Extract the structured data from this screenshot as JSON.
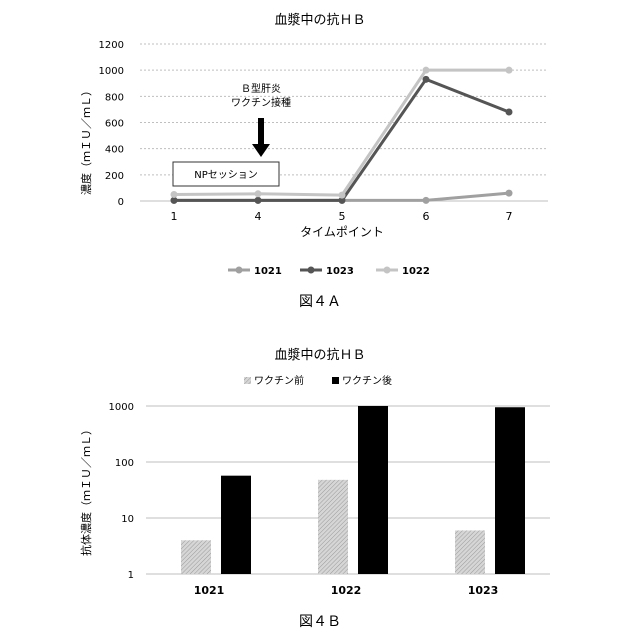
{
  "figure_a": {
    "caption": "図４Ａ",
    "annotation_vaccine": [
      "Ｂ型肝炎",
      "ワクチン接種"
    ],
    "annotation_box": "NPセッション"
  },
  "figure_b": {
    "caption": "図４Ｂ"
  },
  "colors": {
    "s1021": "#a0a0a0",
    "s1023": "#555555",
    "s1022": "#c4c4c4",
    "pre": "#bdbdbd",
    "post": "#000000",
    "grid": "#bfbfbf"
  },
  "chart_data": [
    {
      "type": "line",
      "title": "血漿中の抗ＨＢ",
      "xlabel": "タイムポイント",
      "ylabel": "濃度（ｍＩＵ／ｍＬ）",
      "categories": [
        "1",
        "4",
        "5",
        "6",
        "7"
      ],
      "ylim": [
        0,
        1200
      ],
      "yticks": [
        0,
        200,
        400,
        600,
        800,
        1000,
        1200
      ],
      "grid": true,
      "legend_position": "bottom",
      "series": [
        {
          "name": "1021",
          "values": [
            5,
            5,
            5,
            5,
            60
          ]
        },
        {
          "name": "1023",
          "values": [
            5,
            5,
            5,
            930,
            680
          ]
        },
        {
          "name": "1022",
          "values": [
            50,
            55,
            45,
            1000,
            1000
          ]
        }
      ]
    },
    {
      "type": "bar",
      "title": "血漿中の抗ＨＢ",
      "xlabel": "",
      "ylabel": "抗体濃度（ｍＩＵ／ｍＬ）",
      "categories": [
        "1021",
        "1022",
        "1023"
      ],
      "scale": "log",
      "ylim": [
        1,
        1000
      ],
      "yticks": [
        1,
        10,
        100,
        1000
      ],
      "grid": true,
      "legend_position": "top",
      "series": [
        {
          "name": "ワクチン前",
          "values": [
            4,
            48,
            6
          ]
        },
        {
          "name": "ワクチン後",
          "values": [
            57,
            1000,
            950
          ]
        }
      ]
    }
  ]
}
